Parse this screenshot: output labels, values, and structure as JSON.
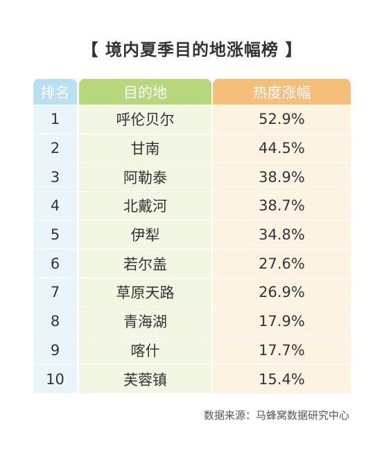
{
  "title": "【 境内夏季目的地涨幅榜 】",
  "chart_data": {
    "type": "table",
    "columns": [
      "排名",
      "目的地",
      "热度涨幅"
    ],
    "rows": [
      {
        "rank": "1",
        "destination": "呼伦贝尔",
        "increase": "52.9%"
      },
      {
        "rank": "2",
        "destination": "甘南",
        "increase": "44.5%"
      },
      {
        "rank": "3",
        "destination": "阿勒泰",
        "increase": "38.9%"
      },
      {
        "rank": "4",
        "destination": "北戴河",
        "increase": "38.7%"
      },
      {
        "rank": "5",
        "destination": "伊犁",
        "increase": "34.8%"
      },
      {
        "rank": "6",
        "destination": "若尔盖",
        "increase": "27.6%"
      },
      {
        "rank": "7",
        "destination": "草原天路",
        "increase": "26.9%"
      },
      {
        "rank": "8",
        "destination": "青海湖",
        "increase": "17.9%"
      },
      {
        "rank": "9",
        "destination": "喀什",
        "increase": "17.7%"
      },
      {
        "rank": "10",
        "destination": "芙蓉镇",
        "increase": "15.4%"
      }
    ]
  },
  "source": "数据来源：马蜂窝数据研究中心",
  "colors": {
    "rank_header": "#b7e0f0",
    "destination_header": "#b6d77b",
    "increase_header": "#f5be7a"
  }
}
